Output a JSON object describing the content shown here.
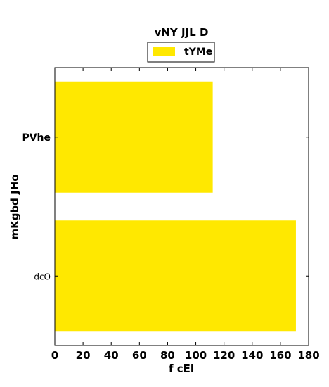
{
  "chart_data": {
    "type": "bar",
    "orientation": "horizontal",
    "title": "vNY JJL D",
    "xlabel": "f cEl",
    "ylabel": "mKgbd JHo",
    "categories": [
      "PVhe",
      "dcO"
    ],
    "category_label_weights": [
      "bold",
      "normal"
    ],
    "series": [
      {
        "name": "tYMe",
        "values": [
          112,
          171
        ],
        "color": "#ffe800"
      }
    ],
    "xlim": [
      0,
      180
    ],
    "xticks": [
      0,
      20,
      40,
      60,
      80,
      100,
      120,
      140,
      160,
      180
    ],
    "grid": false,
    "legend_position": "top-center"
  }
}
